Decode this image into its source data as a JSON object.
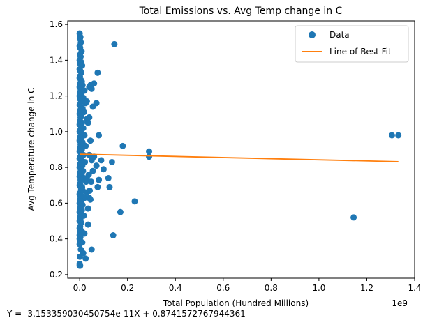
{
  "chart_data": {
    "type": "scatter",
    "title": "Total Emissions vs. Avg Temp change in C",
    "xlabel": "Total Population (Hundred Millions)",
    "ylabel": "Avg Temperature change in C",
    "x_offset_text": "1e9",
    "xlim": [
      -50000000,
      1400000000
    ],
    "ylim": [
      0.18,
      1.62
    ],
    "x_ticks": [
      {
        "value": 0,
        "label": "0.0"
      },
      {
        "value": 200000000,
        "label": "0.2"
      },
      {
        "value": 400000000,
        "label": "0.4"
      },
      {
        "value": 600000000,
        "label": "0.6"
      },
      {
        "value": 800000000,
        "label": "0.8"
      },
      {
        "value": 1000000000,
        "label": "1.0"
      },
      {
        "value": 1200000000,
        "label": "1.2"
      },
      {
        "value": 1400000000,
        "label": "1.4"
      }
    ],
    "y_ticks": [
      {
        "value": 0.2,
        "label": "0.2"
      },
      {
        "value": 0.4,
        "label": "0.4"
      },
      {
        "value": 0.6,
        "label": "0.6"
      },
      {
        "value": 0.8,
        "label": "0.8"
      },
      {
        "value": 1.0,
        "label": "1.0"
      },
      {
        "value": 1.2,
        "label": "1.2"
      },
      {
        "value": 1.4,
        "label": "1.4"
      },
      {
        "value": 1.6,
        "label": "1.6"
      }
    ],
    "grid": false,
    "legend": {
      "position": "top-right",
      "entries": [
        {
          "label": "Data",
          "marker": "circle",
          "color": "#1f77b4"
        },
        {
          "label": "Line of Best Fit",
          "marker": "line",
          "color": "#ff7f0e"
        }
      ]
    },
    "series": [
      {
        "name": "Data",
        "type": "scatter",
        "color": "#1f77b4",
        "points": [
          [
            0,
            1.55
          ],
          [
            3000000,
            1.53
          ],
          [
            1000000,
            1.52
          ],
          [
            5000000,
            1.5
          ],
          [
            0,
            1.48
          ],
          [
            2000000,
            1.47
          ],
          [
            8000000,
            1.45
          ],
          [
            1000000,
            1.43
          ],
          [
            4000000,
            1.42
          ],
          [
            0,
            1.4
          ],
          [
            6000000,
            1.39
          ],
          [
            2000000,
            1.38
          ],
          [
            10000000,
            1.37
          ],
          [
            0,
            1.35
          ],
          [
            3000000,
            1.34
          ],
          [
            7000000,
            1.33
          ],
          [
            1000000,
            1.31
          ],
          [
            0,
            1.3
          ],
          [
            5000000,
            1.29
          ],
          [
            9000000,
            1.28
          ],
          [
            2000000,
            1.27
          ],
          [
            12000000,
            1.26
          ],
          [
            0,
            1.25
          ],
          [
            4000000,
            1.24
          ],
          [
            20000000,
            1.23
          ],
          [
            1000000,
            1.22
          ],
          [
            6000000,
            1.21
          ],
          [
            0,
            1.2
          ],
          [
            15000000,
            1.19
          ],
          [
            3000000,
            1.18
          ],
          [
            8000000,
            1.17
          ],
          [
            25000000,
            1.16
          ],
          [
            0,
            1.15
          ],
          [
            5000000,
            1.14
          ],
          [
            12000000,
            1.13
          ],
          [
            2000000,
            1.12
          ],
          [
            18000000,
            1.11
          ],
          [
            0,
            1.1
          ],
          [
            7000000,
            1.09
          ],
          [
            4000000,
            1.08
          ],
          [
            30000000,
            1.07
          ],
          [
            1000000,
            1.06
          ],
          [
            10000000,
            1.05
          ],
          [
            0,
            1.04
          ],
          [
            6000000,
            1.03
          ],
          [
            15000000,
            1.02
          ],
          [
            3000000,
            1.01
          ],
          [
            0,
            1.0
          ],
          [
            8000000,
            0.99
          ],
          [
            20000000,
            0.98
          ],
          [
            2000000,
            0.97
          ],
          [
            5000000,
            0.96
          ],
          [
            0,
            0.95
          ],
          [
            12000000,
            0.94
          ],
          [
            4000000,
            0.93
          ],
          [
            25000000,
            0.92
          ],
          [
            1000000,
            0.91
          ],
          [
            9000000,
            0.9
          ],
          [
            0,
            0.89
          ],
          [
            6000000,
            0.88
          ],
          [
            16000000,
            0.87
          ],
          [
            3000000,
            0.86
          ],
          [
            0,
            0.85
          ],
          [
            7000000,
            0.84
          ],
          [
            22000000,
            0.83
          ],
          [
            2000000,
            0.82
          ],
          [
            11000000,
            0.81
          ],
          [
            0,
            0.8
          ],
          [
            5000000,
            0.79
          ],
          [
            14000000,
            0.78
          ],
          [
            1000000,
            0.77
          ],
          [
            8000000,
            0.76
          ],
          [
            0,
            0.75
          ],
          [
            19000000,
            0.74
          ],
          [
            4000000,
            0.73
          ],
          [
            27000000,
            0.72
          ],
          [
            2000000,
            0.71
          ],
          [
            0,
            0.7
          ],
          [
            10000000,
            0.69
          ],
          [
            6000000,
            0.68
          ],
          [
            13000000,
            0.67
          ],
          [
            3000000,
            0.66
          ],
          [
            0,
            0.65
          ],
          [
            8000000,
            0.64
          ],
          [
            21000000,
            0.63
          ],
          [
            1000000,
            0.62
          ],
          [
            5000000,
            0.61
          ],
          [
            0,
            0.6
          ],
          [
            12000000,
            0.59
          ],
          [
            4000000,
            0.58
          ],
          [
            2000000,
            0.57
          ],
          [
            9000000,
            0.56
          ],
          [
            0,
            0.55
          ],
          [
            6000000,
            0.54
          ],
          [
            17000000,
            0.53
          ],
          [
            1000000,
            0.52
          ],
          [
            3000000,
            0.51
          ],
          [
            0,
            0.5
          ],
          [
            7000000,
            0.49
          ],
          [
            2000000,
            0.47
          ],
          [
            0,
            0.46
          ],
          [
            4000000,
            0.45
          ],
          [
            1000000,
            0.44
          ],
          [
            0,
            0.42
          ],
          [
            3000000,
            0.41
          ],
          [
            0,
            0.4
          ],
          [
            2000000,
            0.39
          ],
          [
            11000000,
            0.38
          ],
          [
            0,
            0.37
          ],
          [
            5000000,
            0.34
          ],
          [
            1000000,
            0.3
          ],
          [
            0,
            0.26
          ],
          [
            2000000,
            0.25
          ],
          [
            0,
            0.25
          ],
          [
            1000000,
            0.41
          ],
          [
            10000000,
            0.44
          ],
          [
            20000000,
            0.43
          ],
          [
            35000000,
            0.48
          ],
          [
            50000000,
            0.34
          ],
          [
            25000000,
            0.29
          ],
          [
            15000000,
            0.32
          ],
          [
            30000000,
            1.17
          ],
          [
            40000000,
            1.25
          ],
          [
            45000000,
            1.26
          ],
          [
            50000000,
            1.24
          ],
          [
            55000000,
            1.14
          ],
          [
            70000000,
            1.16
          ],
          [
            60000000,
            1.27
          ],
          [
            40000000,
            1.08
          ],
          [
            35000000,
            1.05
          ],
          [
            45000000,
            0.95
          ],
          [
            75000000,
            1.33
          ],
          [
            80000000,
            0.98
          ],
          [
            40000000,
            0.87
          ],
          [
            50000000,
            0.84
          ],
          [
            60000000,
            0.86
          ],
          [
            55000000,
            0.78
          ],
          [
            70000000,
            0.81
          ],
          [
            80000000,
            0.73
          ],
          [
            75000000,
            0.69
          ],
          [
            90000000,
            0.84
          ],
          [
            100000000,
            0.79
          ],
          [
            120000000,
            0.74
          ],
          [
            125000000,
            0.69
          ],
          [
            135000000,
            0.83
          ],
          [
            140000000,
            0.42
          ],
          [
            145000000,
            1.49
          ],
          [
            170000000,
            0.55
          ],
          [
            180000000,
            0.92
          ],
          [
            230000000,
            0.61
          ],
          [
            30000000,
            0.66
          ],
          [
            40000000,
            0.63
          ],
          [
            35000000,
            0.57
          ],
          [
            45000000,
            0.62
          ],
          [
            30000000,
            0.74
          ],
          [
            38000000,
            0.76
          ],
          [
            42000000,
            0.67
          ],
          [
            48000000,
            0.72
          ],
          [
            290000000,
            0.89
          ],
          [
            290000000,
            0.86
          ],
          [
            1145000000,
            0.52
          ],
          [
            1305000000,
            0.98
          ],
          [
            1332000000,
            0.98
          ]
        ]
      },
      {
        "name": "Line of Best Fit",
        "type": "line",
        "color": "#ff7f0e",
        "slope": -3.153359030450754e-11,
        "intercept": 0.8741572767944361,
        "x_range": [
          0,
          1332000000
        ]
      }
    ],
    "annotation": "Y = -3.153359030450754e-11X + 0.8741572767944361"
  }
}
